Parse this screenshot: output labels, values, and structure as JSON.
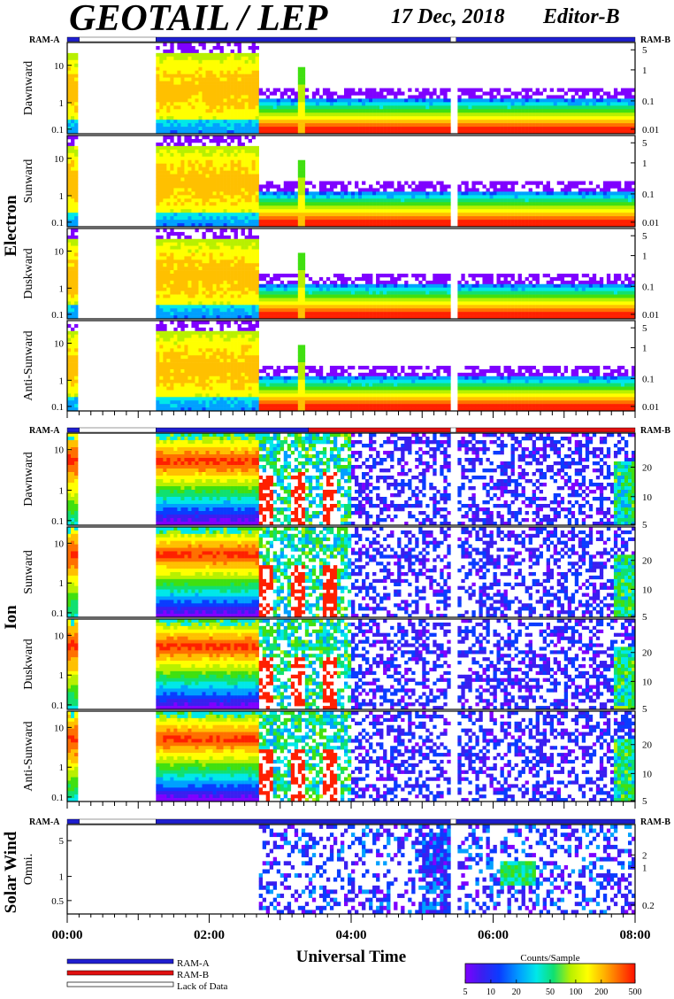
{
  "title": "GEOTAIL / LEP",
  "date": "17 Dec, 2018",
  "editor": "Editor-B",
  "ram_left_label": "RAM-A",
  "ram_right_label": "RAM-B",
  "colors": {
    "ram_a": "#1f1fd0",
    "ram_b": "#e01010",
    "lack": "#ffffff",
    "colormap": [
      "#7f00ff",
      "#3a1ff0",
      "#0a3cff",
      "#00a0ff",
      "#00e8e8",
      "#10e070",
      "#40e010",
      "#b8f000",
      "#ffff00",
      "#ffc000",
      "#ff7000",
      "#ff2000"
    ]
  },
  "groups": [
    {
      "label": "Electron",
      "panels": [
        "Dawnward",
        "Sunward",
        "Duskward",
        "Anti-Sunward"
      ]
    },
    {
      "label": "Ion",
      "panels": [
        "Dawnward",
        "Sunward",
        "Duskward",
        "Anti-Sunward"
      ]
    },
    {
      "label": "Solar Wind",
      "panels": [
        "Omni."
      ]
    }
  ],
  "x_axis": {
    "label": "Universal Time",
    "range_hours": [
      0,
      8
    ],
    "ticks": [
      "00:00",
      "02:00",
      "04:00",
      "06:00",
      "08:00"
    ],
    "tick_hours": [
      0,
      2,
      4,
      6,
      8
    ]
  },
  "left_ticks": {
    "electron": [
      "10",
      "1",
      "0.1"
    ],
    "ion": [
      "10",
      "1",
      "0.1"
    ],
    "solar": [
      "5",
      "1",
      "0.5"
    ]
  },
  "right_ticks": {
    "electron": [
      "5",
      "1",
      "0.1",
      "0.01"
    ],
    "ion": [
      "20",
      "10",
      "5"
    ],
    "solar": [
      "2",
      "1",
      "0.2"
    ]
  },
  "ram_bars": {
    "electron": [
      {
        "from": 0.0,
        "to": 0.17,
        "mode": "A"
      },
      {
        "from": 0.17,
        "to": 1.25,
        "mode": "L"
      },
      {
        "from": 1.25,
        "to": 5.4,
        "mode": "A"
      },
      {
        "from": 5.4,
        "to": 5.48,
        "mode": "L"
      },
      {
        "from": 5.48,
        "to": 8.0,
        "mode": "A"
      }
    ],
    "ion": [
      {
        "from": 0.0,
        "to": 0.17,
        "mode": "A"
      },
      {
        "from": 0.17,
        "to": 1.25,
        "mode": "L"
      },
      {
        "from": 1.25,
        "to": 3.4,
        "mode": "A"
      },
      {
        "from": 3.4,
        "to": 5.4,
        "mode": "B"
      },
      {
        "from": 5.4,
        "to": 5.48,
        "mode": "L"
      },
      {
        "from": 5.48,
        "to": 8.0,
        "mode": "B"
      }
    ],
    "solar": [
      {
        "from": 0.0,
        "to": 0.17,
        "mode": "A"
      },
      {
        "from": 0.17,
        "to": 1.25,
        "mode": "L"
      },
      {
        "from": 1.25,
        "to": 5.4,
        "mode": "A"
      },
      {
        "from": 5.4,
        "to": 5.48,
        "mode": "L"
      },
      {
        "from": 5.48,
        "to": 8.0,
        "mode": "A"
      }
    ]
  },
  "legend": {
    "ram_a": "RAM-A",
    "ram_b": "RAM-B",
    "lack": "Lack of Data"
  },
  "colorbar": {
    "title": "Counts/Sample",
    "ticks": [
      "5",
      "10",
      "20",
      "50",
      "100",
      "200",
      "500"
    ]
  },
  "chart_data": {
    "type": "heatmap",
    "title": "GEOTAIL / LEP",
    "xlabel": "Universal Time",
    "x_range_hours": [
      0,
      8
    ],
    "color_scale": {
      "label": "Counts/Sample",
      "min": 5,
      "max": 500,
      "scale": "log"
    },
    "data_gaps_hours": [
      [
        0.17,
        1.25
      ],
      [
        5.4,
        5.48
      ]
    ],
    "panels": [
      {
        "group": "Electron",
        "name": "Dawnward",
        "left_ticks": [
          "10",
          "1",
          "0.1"
        ],
        "right_ticks": [
          "5",
          "1",
          "0.1",
          "0.01"
        ],
        "regime_hours": {
          "dense": [
            0.0,
            2.7
          ],
          "sparse": [
            2.7,
            8.0
          ]
        }
      },
      {
        "group": "Electron",
        "name": "Sunward",
        "left_ticks": [
          "10",
          "1",
          "0.1"
        ],
        "right_ticks": [
          "5",
          "1",
          "0.1",
          "0.01"
        ],
        "regime_hours": {
          "dense": [
            0.0,
            2.7
          ],
          "sparse": [
            2.7,
            8.0
          ]
        }
      },
      {
        "group": "Electron",
        "name": "Duskward",
        "left_ticks": [
          "10",
          "1",
          "0.1"
        ],
        "right_ticks": [
          "5",
          "1",
          "0.1",
          "0.01"
        ],
        "regime_hours": {
          "dense": [
            0.0,
            2.7
          ],
          "sparse": [
            2.7,
            8.0
          ]
        }
      },
      {
        "group": "Electron",
        "name": "Anti-Sunward",
        "left_ticks": [
          "10",
          "1",
          "0.1"
        ],
        "right_ticks": [
          "5",
          "1",
          "0.1",
          "0.01"
        ],
        "regime_hours": {
          "dense": [
            0.0,
            2.7
          ],
          "sparse": [
            2.7,
            8.0
          ]
        }
      },
      {
        "group": "Ion",
        "name": "Dawnward",
        "left_ticks": [
          "10",
          "1",
          "0.1"
        ],
        "right_ticks": [
          "20",
          "10",
          "5"
        ],
        "regime_hours": {
          "dense": [
            0.0,
            2.7
          ],
          "sparse": [
            2.7,
            8.0
          ]
        }
      },
      {
        "group": "Ion",
        "name": "Sunward",
        "left_ticks": [
          "10",
          "1",
          "0.1"
        ],
        "right_ticks": [
          "20",
          "10",
          "5"
        ],
        "regime_hours": {
          "dense": [
            0.0,
            2.7
          ],
          "sparse": [
            2.7,
            8.0
          ]
        }
      },
      {
        "group": "Ion",
        "name": "Duskward",
        "left_ticks": [
          "10",
          "1",
          "0.1"
        ],
        "right_ticks": [
          "20",
          "10",
          "5"
        ],
        "regime_hours": {
          "dense": [
            0.0,
            2.7
          ],
          "sparse": [
            2.7,
            8.0
          ]
        }
      },
      {
        "group": "Ion",
        "name": "Anti-Sunward",
        "left_ticks": [
          "10",
          "1",
          "0.1"
        ],
        "right_ticks": [
          "20",
          "10",
          "5"
        ],
        "regime_hours": {
          "dense": [
            0.0,
            2.7
          ],
          "sparse": [
            2.7,
            8.0
          ]
        }
      },
      {
        "group": "Solar Wind",
        "name": "Omni.",
        "left_ticks": [
          "5",
          "1",
          "0.5"
        ],
        "right_ticks": [
          "2",
          "1",
          "0.2"
        ],
        "regime_hours": {
          "sparse": [
            2.7,
            8.0
          ]
        }
      }
    ]
  }
}
